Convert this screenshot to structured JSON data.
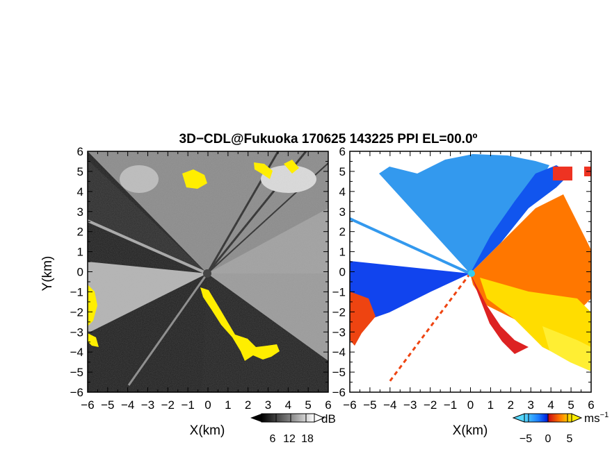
{
  "title": "3D−CDL@Fukuoka 170625 143225 PPI EL=00.0º",
  "panels": [
    {
      "name": "left",
      "xlabel": "X(km)",
      "ylabel": "Y(km)",
      "colorbar_unit": "dB",
      "colorbar_ticks": [
        "6",
        "12",
        "18"
      ]
    },
    {
      "name": "right",
      "xlabel": "X(km)",
      "ylabel": "",
      "colorbar_unit": "ms",
      "colorbar_unit_exp": "−1",
      "colorbar_ticks": [
        "−5",
        "0",
        "5"
      ]
    }
  ],
  "colors": {
    "snr_dark": "#262626",
    "snr_light": "#cfcfcf",
    "snr_high": "#ffee00",
    "vel_neg_light": "#55c8ff",
    "vel_neg": "#1a8cff",
    "vel_neg_dark": "#0033ee",
    "vel_zero": "#cc1111",
    "vel_pos": "#ff7700",
    "vel_pos_light": "#ffee00"
  },
  "chart_data": [
    {
      "type": "heatmap",
      "variable": "SNR",
      "unit": "dB",
      "xlim": [
        -6,
        6
      ],
      "ylim": [
        -6,
        6
      ],
      "xticks": [
        -6,
        -5,
        -4,
        -3,
        -2,
        -1,
        0,
        1,
        2,
        3,
        4,
        5,
        6
      ],
      "yticks": [
        -6,
        -5,
        -4,
        -3,
        -2,
        -1,
        0,
        1,
        2,
        3,
        4,
        5,
        6
      ],
      "xlabel": "X(km)",
      "ylabel": "Y(km)",
      "colorbar": {
        "ticks": [
          6,
          12,
          18
        ],
        "label": "dB"
      }
    },
    {
      "type": "heatmap",
      "variable": "Doppler velocity",
      "unit": "ms−1",
      "xlim": [
        -6,
        6
      ],
      "ylim": [
        -6,
        6
      ],
      "xticks": [
        -6,
        -5,
        -4,
        -3,
        -2,
        -1,
        0,
        1,
        2,
        3,
        4,
        5,
        6
      ],
      "yticks": [
        -6,
        -5,
        -4,
        -3,
        -2,
        -1,
        0,
        1,
        2,
        3,
        4,
        5,
        6
      ],
      "xlabel": "X(km)",
      "colorbar": {
        "ticks": [
          -5,
          0,
          5
        ],
        "label": "ms−1"
      }
    }
  ]
}
